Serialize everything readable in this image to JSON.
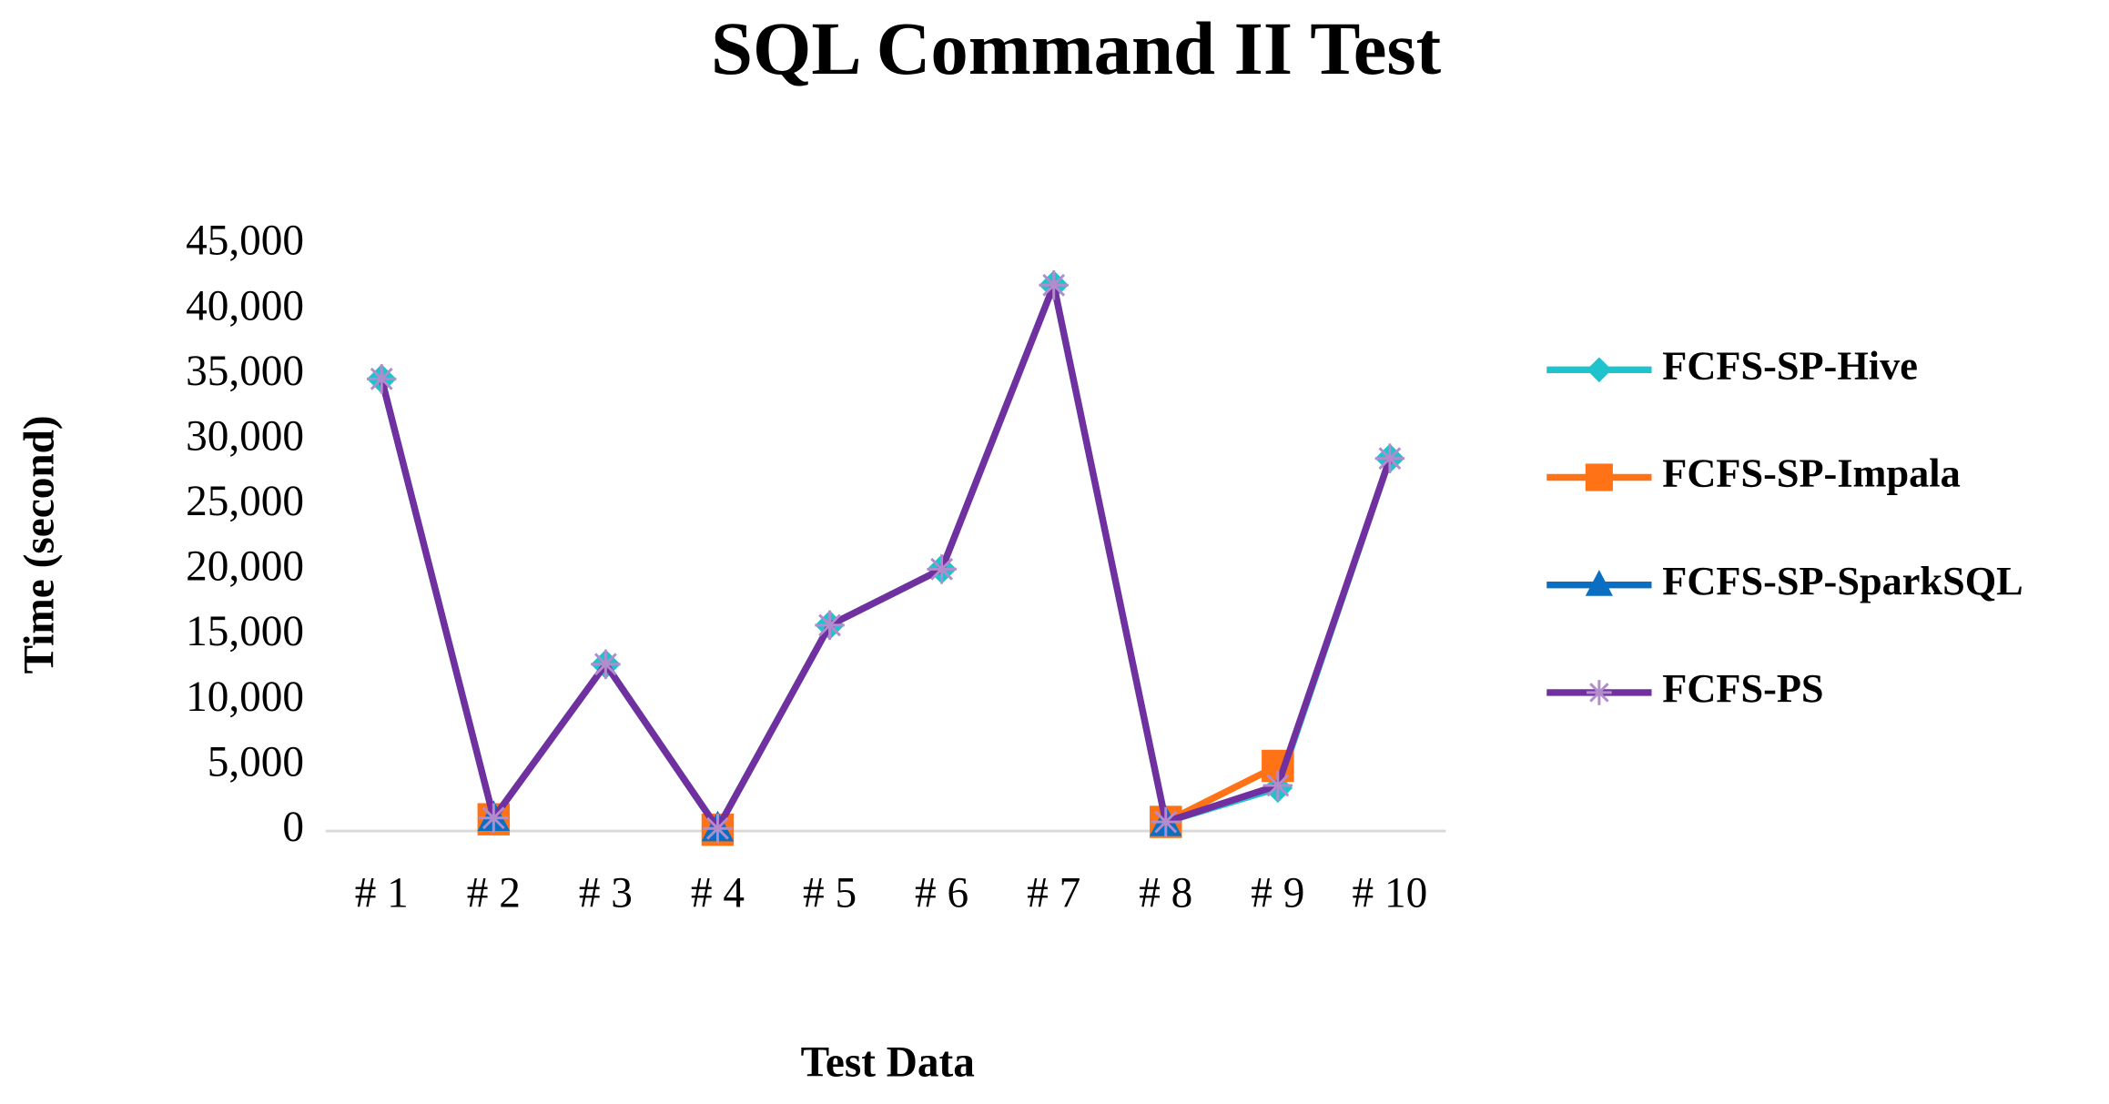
{
  "chart_data": {
    "type": "line",
    "title": "SQL Command II Test",
    "x_label": "Test Data",
    "y_label": "Time (second)",
    "categories": [
      "# 1",
      "# 2",
      "# 3",
      "# 4",
      "# 5",
      "# 6",
      "# 7",
      "# 8",
      "# 9",
      "# 10"
    ],
    "series": [
      {
        "name": "FCFS-SP-Hive",
        "color": "#1fc3cd",
        "marker": "diamond",
        "values": [
          34700,
          1000,
          12800,
          200,
          15800,
          20100,
          41900,
          700,
          3300,
          28600
        ]
      },
      {
        "name": "FCFS-SP-Impala",
        "color": "#ff7316",
        "marker": "square",
        "values": [
          null,
          900,
          null,
          100,
          null,
          null,
          null,
          700,
          5000,
          null
        ]
      },
      {
        "name": "FCFS-SP-SparkSQL",
        "color": "#0a6fc2",
        "marker": "triangle",
        "values": [
          null,
          1000,
          null,
          200,
          null,
          null,
          null,
          600,
          null,
          null
        ]
      },
      {
        "name": "FCFS-PS",
        "color": "#7030a0",
        "marker": "star",
        "values": [
          34700,
          1000,
          12800,
          200,
          15800,
          20100,
          41900,
          700,
          3500,
          28600
        ]
      }
    ],
    "ylim": [
      0,
      45000
    ],
    "yticks": [
      0,
      {
        "value": 5000,
        "label": "5,000"
      },
      {
        "value": 10000,
        "label": "10,000"
      },
      {
        "value": 15000,
        "label": "15,000"
      },
      {
        "value": 20000,
        "label": "20,000"
      },
      {
        "value": 25000,
        "label": "25,000"
      },
      {
        "value": 30000,
        "label": "30,000"
      },
      {
        "value": 35000,
        "label": "35,000"
      },
      {
        "value": 40000,
        "label": "40,000"
      },
      {
        "value": 45000,
        "label": "45,000"
      }
    ],
    "grid": false,
    "legend": "right"
  }
}
